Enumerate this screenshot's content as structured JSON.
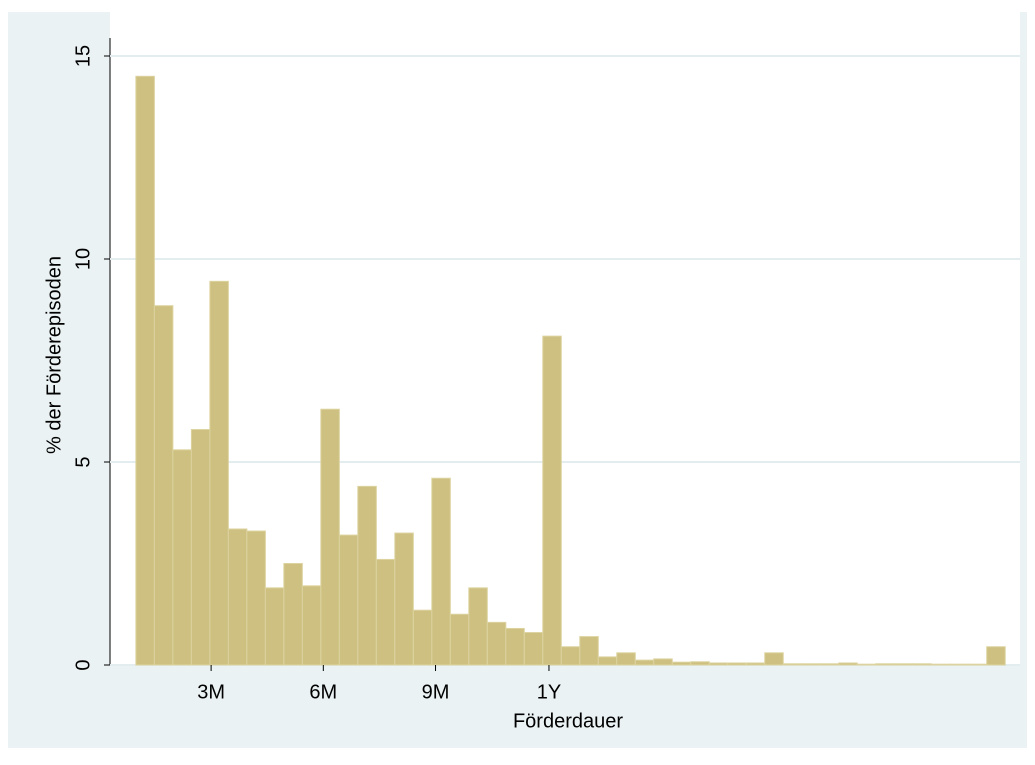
{
  "chart_data": {
    "type": "histogram",
    "x_label": "Förderdauer",
    "y_label": "% der Förderepisoden",
    "bins": [
      30,
      45,
      60,
      75,
      90,
      105,
      120,
      135,
      150,
      165,
      180,
      195,
      210,
      225,
      240,
      255,
      270,
      285,
      300,
      315,
      330,
      345,
      360,
      375,
      390,
      405,
      420,
      435,
      450,
      465,
      480,
      495,
      510,
      525,
      540,
      555,
      570,
      585,
      600,
      615,
      630,
      645,
      660,
      675,
      690,
      705,
      720,
      735
    ],
    "values": [
      14.5,
      8.85,
      5.3,
      5.8,
      9.45,
      3.35,
      3.3,
      1.9,
      2.5,
      1.95,
      6.3,
      3.2,
      4.4,
      2.6,
      3.25,
      1.35,
      4.6,
      1.25,
      1.9,
      1.05,
      0.9,
      0.8,
      8.1,
      0.45,
      0.7,
      0.2,
      0.3,
      0.12,
      0.15,
      0.07,
      0.08,
      0.05,
      0.05,
      0.05,
      0.3,
      0.03,
      0.03,
      0.03,
      0.05,
      0.02,
      0.03,
      0.03,
      0.03,
      0.02,
      0.02,
      0.02,
      0.45
    ],
    "color": "#cdc081",
    "xlim": [
      9,
      747
    ],
    "xticks": [
      {
        "value": 91,
        "label": "3M"
      },
      {
        "value": 182,
        "label": "6M"
      },
      {
        "value": 273,
        "label": "9M"
      },
      {
        "value": 365,
        "label": "1Y"
      }
    ],
    "ylim": [
      0,
      15
    ],
    "yticks": [
      0,
      5,
      10,
      15
    ],
    "grid": true
  }
}
